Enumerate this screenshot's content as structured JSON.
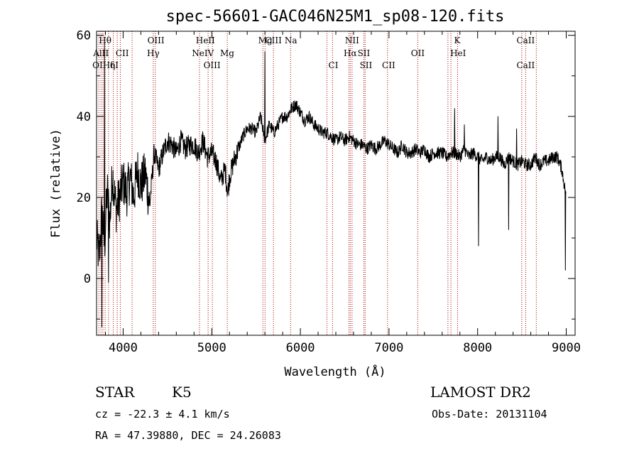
{
  "chart_data": {
    "type": "line",
    "title": "spec-56601-GAC046N25M1_sp08-120.fits",
    "xlabel": "Wavelength (Å)",
    "ylabel": "Flux (relative)",
    "xlim": [
      3700,
      9100
    ],
    "ylim": [
      -14,
      61
    ],
    "xticks": [
      4000,
      5000,
      6000,
      7000,
      8000,
      9000
    ],
    "yticks": [
      0,
      20,
      40,
      60
    ],
    "grid": false,
    "legend": "none",
    "line_color": "#000000",
    "marker_color": "#aa0000",
    "spectrum": {
      "x": [
        3700,
        3730,
        3760,
        3790,
        3820,
        3850,
        3880,
        3920,
        3960,
        4000,
        4040,
        4080,
        4120,
        4160,
        4200,
        4250,
        4300,
        4350,
        4400,
        4450,
        4500,
        4550,
        4600,
        4650,
        4700,
        4750,
        4800,
        4850,
        4900,
        4950,
        5000,
        5050,
        5100,
        5150,
        5180,
        5200,
        5250,
        5300,
        5350,
        5400,
        5450,
        5500,
        5550,
        5600,
        5650,
        5700,
        5750,
        5800,
        5850,
        5900,
        5950,
        6000,
        6050,
        6100,
        6150,
        6200,
        6250,
        6300,
        6350,
        6400,
        6450,
        6500,
        6550,
        6600,
        6650,
        6700,
        6750,
        6800,
        6850,
        6900,
        6950,
        7000,
        7050,
        7100,
        7150,
        7200,
        7250,
        7300,
        7350,
        7400,
        7450,
        7500,
        7550,
        7600,
        7650,
        7700,
        7750,
        7800,
        7850,
        7900,
        7950,
        8000,
        8050,
        8100,
        8150,
        8200,
        8250,
        8300,
        8350,
        8400,
        8450,
        8500,
        8550,
        8600,
        8650,
        8700,
        8750,
        8800,
        8850,
        8900,
        8950,
        9000
      ],
      "y": [
        10,
        5,
        17,
        8,
        22,
        14,
        26,
        17,
        20,
        24,
        21,
        25,
        20,
        27,
        23,
        26,
        18,
        31,
        27,
        31,
        34,
        33,
        31,
        34,
        32,
        33,
        33,
        31,
        34,
        30,
        31,
        29,
        24,
        27,
        21,
        25,
        29,
        32,
        35,
        37,
        37,
        36,
        40,
        34,
        38,
        36,
        38,
        40,
        40,
        42,
        43,
        41,
        39,
        40,
        38,
        37,
        36,
        36,
        35,
        34,
        35,
        34,
        35,
        34,
        33,
        33,
        32,
        33,
        32,
        33,
        34,
        33,
        32,
        31,
        33,
        31,
        31,
        32,
        31,
        32,
        30,
        31,
        31,
        31,
        30,
        31,
        31,
        30,
        32,
        30,
        31,
        30,
        29,
        30,
        29,
        30,
        30,
        28,
        30,
        29,
        28,
        29,
        28,
        28,
        30,
        28,
        29,
        29,
        30,
        30,
        27,
        20
      ]
    },
    "spikes": [
      {
        "x": 3760,
        "y": -12
      },
      {
        "x": 3790,
        "y": 58
      },
      {
        "x": 3835,
        "y": -1
      },
      {
        "x": 5600,
        "y": 56
      },
      {
        "x": 7740,
        "y": 42
      },
      {
        "x": 7850,
        "y": 38
      },
      {
        "x": 8010,
        "y": 8
      },
      {
        "x": 8230,
        "y": 40
      },
      {
        "x": 8350,
        "y": 12
      },
      {
        "x": 8440,
        "y": 37
      },
      {
        "x": 8990,
        "y": 2
      }
    ],
    "annotations": [
      {
        "label": "Hθ",
        "x": 3797,
        "row": 0
      },
      {
        "label": "AlII",
        "x": 3750,
        "row": 1
      },
      {
        "label": "CII",
        "x": 3990,
        "row": 1
      },
      {
        "label": "OIII",
        "x": 4370,
        "row": 0
      },
      {
        "label": "Hγ",
        "x": 4340,
        "row": 1
      },
      {
        "label": "HeII",
        "x": 4928,
        "row": 0
      },
      {
        "label": "NeIV",
        "x": 4900,
        "row": 1
      },
      {
        "label": "Mg",
        "x": 5174,
        "row": 1
      },
      {
        "label": "Mg",
        "x": 5604,
        "row": 0
      },
      {
        "label": "CIII",
        "x": 5696,
        "row": 0
      },
      {
        "label": "Na",
        "x": 5893,
        "row": 0
      },
      {
        "label": "NII",
        "x": 6583,
        "row": 0
      },
      {
        "label": "Hα",
        "x": 6563,
        "row": 1
      },
      {
        "label": "SII",
        "x": 6716,
        "row": 1
      },
      {
        "label": "OII",
        "x": 7325,
        "row": 1
      },
      {
        "label": "K",
        "x": 7770,
        "row": 0
      },
      {
        "label": "HeI",
        "x": 7780,
        "row": 1
      },
      {
        "label": "CaII",
        "x": 8542,
        "row": 0
      },
      {
        "label": "OIHη",
        "x": 3782,
        "row": 2
      },
      {
        "label": "δI",
        "x": 3900,
        "row": 2
      },
      {
        "label": "OIII",
        "x": 5003,
        "row": 2
      },
      {
        "label": "CI",
        "x": 6372,
        "row": 2
      },
      {
        "label": "SII",
        "x": 6740,
        "row": 2
      },
      {
        "label": "CII",
        "x": 6996,
        "row": 2
      },
      {
        "label": "CaII",
        "x": 8542,
        "row": 2
      }
    ],
    "marker_lines": [
      3726,
      3750,
      3772,
      3797,
      3835,
      3889,
      3933,
      3968,
      4101,
      4340,
      4363,
      4861,
      4959,
      5007,
      5175,
      5577,
      5601,
      5696,
      5890,
      6300,
      6363,
      6548,
      6563,
      6583,
      6717,
      6731,
      6983,
      7325,
      7665,
      7699,
      7774,
      8498,
      8542,
      8662
    ]
  },
  "footer": {
    "object_class": "STAR",
    "subclass": "K5",
    "survey": "LAMOST DR2",
    "cz": "cz = -22.3 ± 4.1 km/s",
    "obs_date": "Obs-Date: 20131104",
    "coords": "RA =  47.39880, DEC =  24.26083"
  }
}
